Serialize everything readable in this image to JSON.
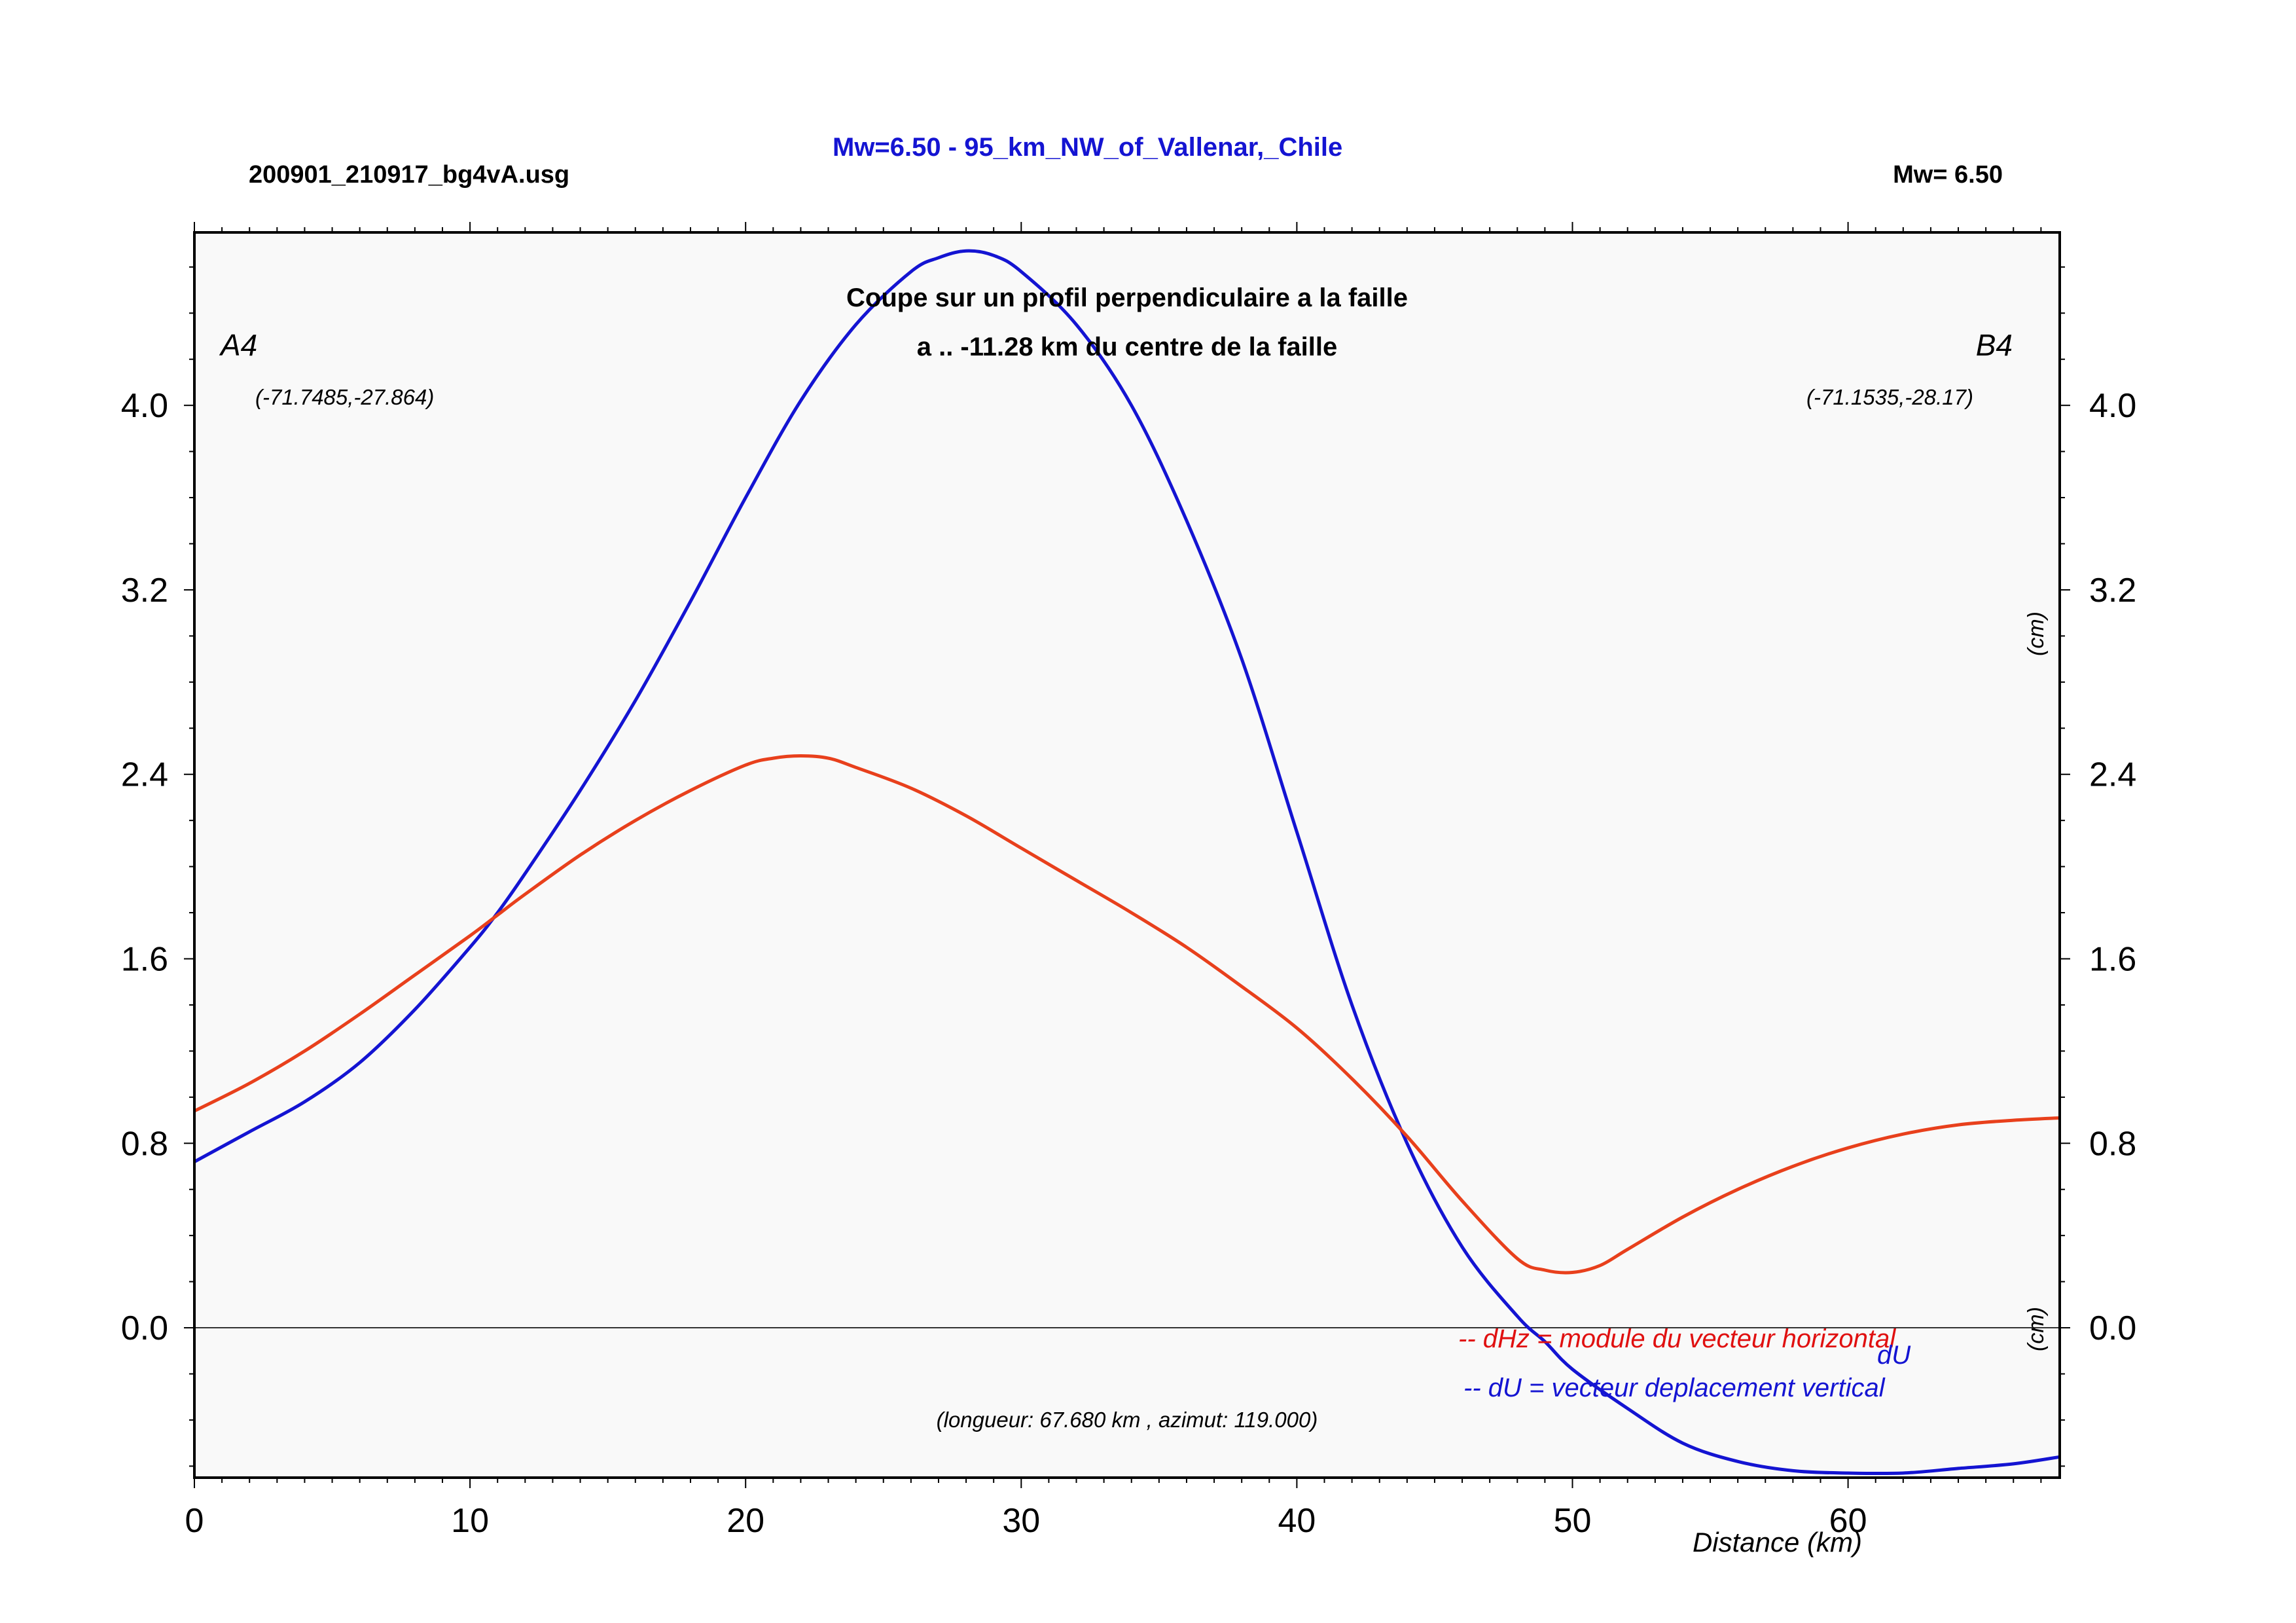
{
  "header": {
    "left": "200901_210917_bg4vA.usg",
    "center": "Mw=6.50 - 95_km_NW_of_Vallenar,_Chile",
    "right": "Mw= 6.50"
  },
  "plot": {
    "title_line1": "Coupe sur un profil perpendiculaire a la faille",
    "title_line2": "a .. -11.28 km du centre de la faille",
    "start_label": "A4",
    "end_label": "B4",
    "start_coords": "(-71.7485,-27.864)",
    "end_coords": "(-71.1535,-28.17)",
    "length_note": "(longueur: 67.680 km , azimut: 119.000)",
    "legend_dhz": "-- dHz = module du vecteur horizontal",
    "legend_du": "-- dU =  vecteur deplacement vertical",
    "du_tag": "dU",
    "right_unit_upper": "(cm)",
    "right_unit_lower": "(cm)"
  },
  "colors": {
    "du": "#1414d2",
    "dhz": "#e8401c",
    "header_center": "#1414d2",
    "legend_dhz": "#e01010",
    "legend_du": "#1414d2",
    "plot_bg": "#f9f9f9"
  },
  "chart_data": {
    "type": "line",
    "xlabel": "Distance (km)",
    "ylabel": "",
    "xlim": [
      0,
      67.68
    ],
    "ylim": [
      -0.65,
      4.75
    ],
    "x_ticks": [
      0,
      10,
      20,
      30,
      40,
      50,
      60
    ],
    "y_ticks": [
      0.0,
      0.8,
      1.6,
      2.4,
      3.2,
      4.0
    ],
    "y_tick_labels": [
      "0.0",
      "0.8",
      "1.6",
      "2.4",
      "3.2",
      "4.0"
    ],
    "series": [
      {
        "name": "dU",
        "color": "#1414d2",
        "x": [
          0,
          2,
          4,
          6,
          8,
          10,
          11,
          12,
          14,
          16,
          18,
          20,
          22,
          24,
          26,
          27,
          28,
          29,
          30,
          32,
          34,
          36,
          38,
          40,
          42,
          44,
          46,
          48,
          49,
          50,
          52,
          54,
          56,
          58,
          60,
          62,
          64,
          66,
          67.68
        ],
        "y": [
          0.72,
          0.85,
          0.98,
          1.15,
          1.38,
          1.65,
          1.8,
          1.97,
          2.33,
          2.72,
          3.15,
          3.6,
          4.02,
          4.35,
          4.58,
          4.64,
          4.67,
          4.65,
          4.58,
          4.35,
          4.0,
          3.5,
          2.9,
          2.15,
          1.4,
          0.8,
          0.35,
          0.05,
          -0.06,
          -0.18,
          -0.35,
          -0.5,
          -0.58,
          -0.62,
          -0.63,
          -0.63,
          -0.61,
          -0.59,
          -0.56
        ]
      },
      {
        "name": "dHz",
        "color": "#e8401c",
        "x": [
          0,
          2,
          4,
          6,
          8,
          10,
          11,
          12,
          14,
          16,
          18,
          20,
          21,
          22,
          23,
          24,
          26,
          28,
          30,
          32,
          34,
          36,
          38,
          40,
          42,
          44,
          46,
          48,
          49,
          50,
          51,
          52,
          54,
          56,
          58,
          60,
          62,
          64,
          66,
          67.68
        ],
        "y": [
          0.94,
          1.06,
          1.2,
          1.36,
          1.53,
          1.7,
          1.79,
          1.88,
          2.05,
          2.2,
          2.33,
          2.44,
          2.47,
          2.48,
          2.47,
          2.43,
          2.34,
          2.22,
          2.08,
          1.94,
          1.8,
          1.65,
          1.48,
          1.3,
          1.08,
          0.83,
          0.55,
          0.3,
          0.25,
          0.24,
          0.27,
          0.34,
          0.48,
          0.6,
          0.7,
          0.78,
          0.84,
          0.88,
          0.9,
          0.91
        ]
      }
    ]
  }
}
